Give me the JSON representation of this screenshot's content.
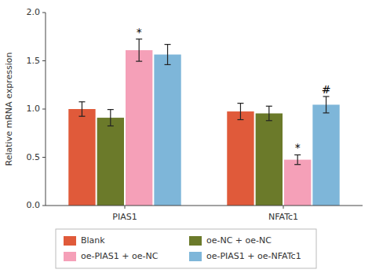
{
  "chart_data": {
    "type": "bar",
    "y_label": "Relative mRNA expression",
    "categories": [
      "PIAS1",
      "NFATc1"
    ],
    "series": [
      {
        "name": "Blank",
        "color": "#E05A3A",
        "values": [
          1.0,
          0.975
        ],
        "errors": [
          0.075,
          0.085
        ]
      },
      {
        "name": "oe-NC + oe-NC",
        "color": "#6B7A2A",
        "values": [
          0.91,
          0.955
        ],
        "errors": [
          0.085,
          0.075
        ]
      },
      {
        "name": "oe-PIAS1 + oe-NC",
        "color": "#F5A0B8",
        "values": [
          1.61,
          0.475
        ],
        "errors": [
          0.115,
          0.05
        ]
      },
      {
        "name": "oe-PIAS1 + oe-NFATc1",
        "color": "#7EB6D9",
        "values": [
          1.565,
          1.045
        ],
        "errors": [
          0.105,
          0.085
        ]
      }
    ],
    "ylim": [
      0,
      2.0
    ],
    "yticks": [
      {
        "value": 0.0,
        "label": "0.0"
      },
      {
        "value": 0.5,
        "label": "0.5"
      },
      {
        "value": 1.0,
        "label": "1.0"
      },
      {
        "value": 1.5,
        "label": "1.5"
      },
      {
        "value": 2.0,
        "label": "2.0"
      }
    ],
    "annotations": [
      {
        "text": "*",
        "category": "PIAS1",
        "series": "oe-PIAS1 + oe-NC"
      },
      {
        "text": "*",
        "category": "NFATc1",
        "series": "oe-PIAS1 + oe-NC"
      },
      {
        "text": "#",
        "category": "NFATc1",
        "series": "oe-PIAS1 + oe-NFATc1"
      }
    ],
    "grid": false,
    "legend": "bottom"
  }
}
